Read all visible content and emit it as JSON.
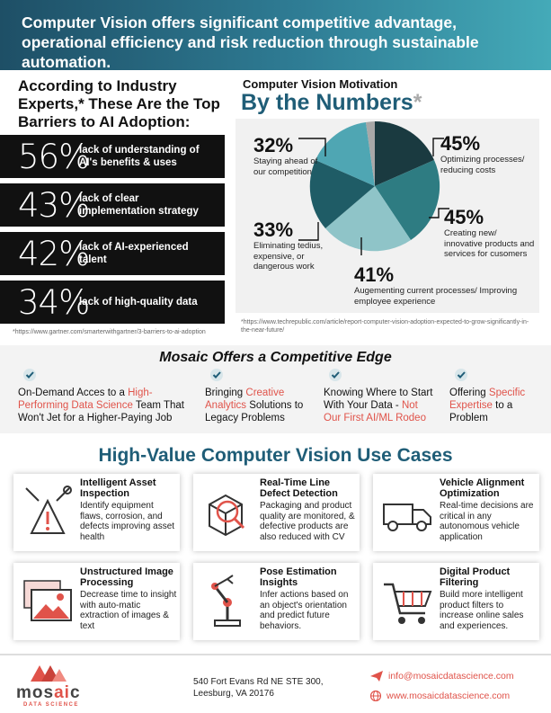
{
  "header": {
    "headline": "Computer Vision offers significant competitive advantage, operational efficiency and risk reduction through sustainable automation."
  },
  "barriers": {
    "title": "According to Industry Experts,* These Are the Top Barriers to AI Adoption:",
    "items": [
      {
        "pct": "56%",
        "desc": "lack of understanding of AI's benefits & uses"
      },
      {
        "pct": "43%",
        "desc": "lack of clear implementation strategy"
      },
      {
        "pct": "42%",
        "desc": "lack of AI-experienced talent"
      },
      {
        "pct": "34%",
        "desc": "lack of high-quality data"
      }
    ],
    "source": "*https://www.gartner.com/smarterwithgartner/3-barriers-to-ai-adoption"
  },
  "motivation": {
    "subtitle": "Computer Vision Motivation",
    "title": "By the Numbers",
    "title_mark": "*",
    "items": [
      {
        "pct": "32%",
        "desc": "Staying ahead of our competition"
      },
      {
        "pct": "45%",
        "desc": "Optimizing processes/ reducing costs"
      },
      {
        "pct": "45%",
        "desc": "Creating new/ innovative products and services for cusomers"
      },
      {
        "pct": "33%",
        "desc": "Eliminating tedius, expensive, or dangerous work"
      },
      {
        "pct": "41%",
        "desc": "Augementing current processes/ Improving employee experience"
      }
    ],
    "source": "*https://www.techrepublic.com/article/report-computer-vision-adoption-expected-to-grow-significantly-in-the-near-future/"
  },
  "edge": {
    "title": "Mosaic Offers a Competitive Edge",
    "items": [
      {
        "pre": "On-Demand Acces to a ",
        "hl": "High-Performing Data Science",
        "post": " Team That Won't Jet for a Higher-Paying Job"
      },
      {
        "pre": "Bringing ",
        "hl": "Creative Analytics",
        "post": " Solutions to Legacy Problems"
      },
      {
        "pre": "Knowing Where to Start With Your Data - ",
        "hl": "Not Our First AI/ML Rodeo",
        "post": ""
      },
      {
        "pre": "Offering ",
        "hl": "Specific Expertise",
        "post": " to a Problem"
      }
    ]
  },
  "usecases": {
    "title": "High-Value Computer Vision Use Cases",
    "cards": [
      {
        "title": "Intelligent Asset Inspection",
        "text": "Identify equipment flaws, corrosion, and defects improving asset health",
        "icon": "warning-tools-icon"
      },
      {
        "title": "Real-Time Line Defect Detection",
        "text": "Packaging and product quality are monitored, & defective products are also reduced with CV",
        "icon": "box-magnifier-icon"
      },
      {
        "title": "Vehicle Alignment Optimization",
        "text": "Real-time decisions are critical in any autonomous vehicle application",
        "icon": "truck-icon"
      },
      {
        "title": "Unstructured Image Processing",
        "text": "Decrease time to insight with auto-matic extraction of images & text",
        "icon": "image-gallery-icon"
      },
      {
        "title": "Pose Estimation Insights",
        "text": "Infer actions based on an object's orientation and predict future behaviors.",
        "icon": "robot-arm-icon"
      },
      {
        "title": "Digital Product Filtering",
        "text": "Build more intelligent product filters to increase online sales and experiences.",
        "icon": "shopping-cart-icon"
      }
    ]
  },
  "footer": {
    "logo_main": "mos",
    "logo_accent": "ai",
    "logo_end": "c",
    "logo_sub": "DATA SCIENCE",
    "address_line1": "540 Fort Evans Rd NE STE 300,",
    "address_line2": "Leesburg, VA 20176",
    "email": "info@mosaicdatascience.com",
    "website": "www.mosaicdatascience.com"
  },
  "colors": {
    "accent": "#e0534a",
    "brand": "#1f5d77",
    "pie": [
      "#1a3a40",
      "#2e7c82",
      "#8fc4c8",
      "#1f5c66",
      "#4fa6b3",
      "#a8a8a8"
    ]
  }
}
